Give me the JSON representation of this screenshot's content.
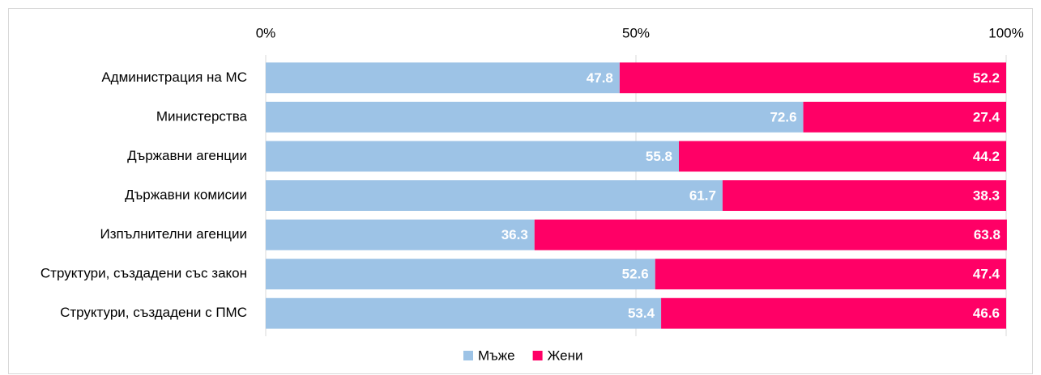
{
  "chart_data": {
    "type": "bar",
    "orientation": "horizontal",
    "stacked": true,
    "categories": [
      "Администрация на МС",
      "Министерства",
      "Държавни агенции",
      "Държавни комисии",
      "Изпълнителни агенции",
      "Структури, създадени със закон",
      "Структури, създадени с ПМС"
    ],
    "series": [
      {
        "name": "Мъже",
        "color": "#9dc3e6",
        "values": [
          47.8,
          72.6,
          55.8,
          61.7,
          36.3,
          52.6,
          53.4
        ]
      },
      {
        "name": "Жени",
        "color": "#ff0066",
        "values": [
          52.2,
          27.4,
          44.2,
          38.3,
          63.8,
          47.4,
          46.6
        ]
      }
    ],
    "xlim": [
      0,
      100
    ],
    "xticks": [
      {
        "value": 0,
        "label": "0%"
      },
      {
        "value": 50,
        "label": "50%"
      },
      {
        "value": 100,
        "label": "100%"
      }
    ],
    "grid": true,
    "legend": "bottom"
  }
}
